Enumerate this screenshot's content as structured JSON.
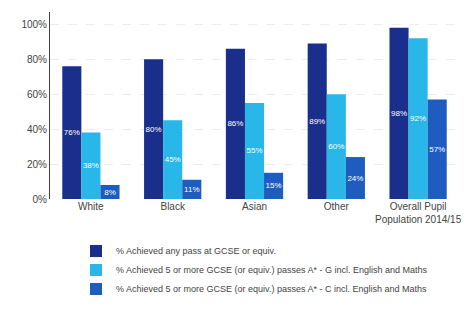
{
  "chart_data": {
    "type": "bar",
    "categories": [
      "White",
      "Black",
      "Asian",
      "Other",
      "Overall Pupil\nPopulation 2014/15"
    ],
    "series": [
      {
        "name": "% Achieved any pass at GCSE or equiv.",
        "color": "#1a2f8c",
        "values": [
          76,
          80,
          86,
          89,
          98
        ],
        "value_labels": [
          "76%",
          "80%",
          "86%",
          "89%",
          "98%"
        ]
      },
      {
        "name": "% Achieved 5 or more GCSE (or equiv.) passes A* - G incl. English and Maths",
        "color": "#29b6e8",
        "values": [
          38,
          45,
          55,
          60,
          92
        ],
        "value_labels": [
          "38%",
          "45%",
          "55%",
          "60%",
          "92%"
        ]
      },
      {
        "name": "% Achieved 5 or more GCSE (or equiv.) passes A* - C incl. English and Maths",
        "color": "#1e5dbf",
        "values": [
          8,
          11,
          15,
          24,
          57
        ],
        "value_labels": [
          "8%",
          "11%",
          "15%",
          "24%",
          "57%"
        ]
      }
    ],
    "ylim": [
      0,
      107
    ],
    "yticks": [
      {
        "value": 0,
        "label": "0%"
      },
      {
        "value": 20,
        "label": "20%"
      },
      {
        "value": 40,
        "label": "40%"
      },
      {
        "value": 60,
        "label": "60%"
      },
      {
        "value": 80,
        "label": "80%"
      },
      {
        "value": 100,
        "label": "100%"
      }
    ],
    "grid": true,
    "data_labels": true,
    "legend": "bottom"
  }
}
